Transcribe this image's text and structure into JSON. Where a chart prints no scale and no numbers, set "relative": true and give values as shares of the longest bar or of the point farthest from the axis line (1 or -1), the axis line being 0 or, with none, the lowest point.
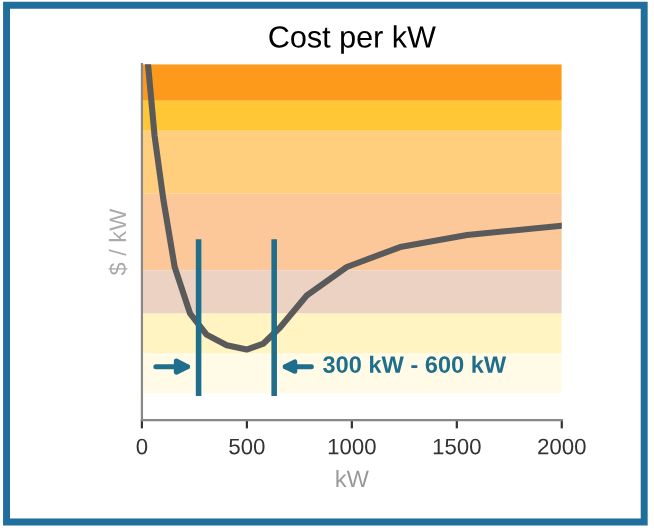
{
  "chart_data": {
    "type": "line",
    "title": "Cost per kW",
    "xlabel": "kW",
    "ylabel": "$ / kW",
    "relative": true,
    "x": [
      29,
      60,
      102,
      156,
      229,
      308,
      404,
      499,
      579,
      658,
      785,
      976,
      1230,
      1549,
      2000
    ],
    "series": [
      {
        "color": "#5a5a5a",
        "values": [
          1.0,
          0.8,
          0.62,
          0.43,
          0.3,
          0.24,
          0.21,
          0.198,
          0.215,
          0.26,
          0.35,
          0.43,
          0.486,
          0.52,
          0.546
        ]
      }
    ],
    "xlim": [
      0,
      2000
    ],
    "xticks": [
      0,
      500,
      1000,
      1500,
      2000
    ],
    "bands": [
      {
        "axis": "y",
        "from": 0.897,
        "to": 1.0,
        "color": "#fd9a1c"
      },
      {
        "axis": "y",
        "from": 0.813,
        "to": 0.897,
        "color": "#ffc636"
      },
      {
        "axis": "y",
        "from": 0.636,
        "to": 0.813,
        "color": "#ffcf7e"
      },
      {
        "axis": "y",
        "from": 0.421,
        "to": 0.636,
        "color": "#fcc89a"
      },
      {
        "axis": "y",
        "from": 0.299,
        "to": 0.421,
        "color": "#ecd2c2"
      },
      {
        "axis": "y",
        "from": 0.187,
        "to": 0.299,
        "color": "#fff4c2"
      },
      {
        "axis": "y",
        "from": 0.075,
        "to": 0.187,
        "color": "#fffbe6"
      }
    ],
    "ref_lines": [
      {
        "axis": "x",
        "value": 270,
        "color": "#1f6e8c"
      },
      {
        "axis": "x",
        "value": 630,
        "color": "#1f6e8c"
      }
    ],
    "annotations": [
      "300 kW - 600 kW"
    ],
    "grid": false,
    "legend": false,
    "marker": "none",
    "line_style": "solid"
  }
}
